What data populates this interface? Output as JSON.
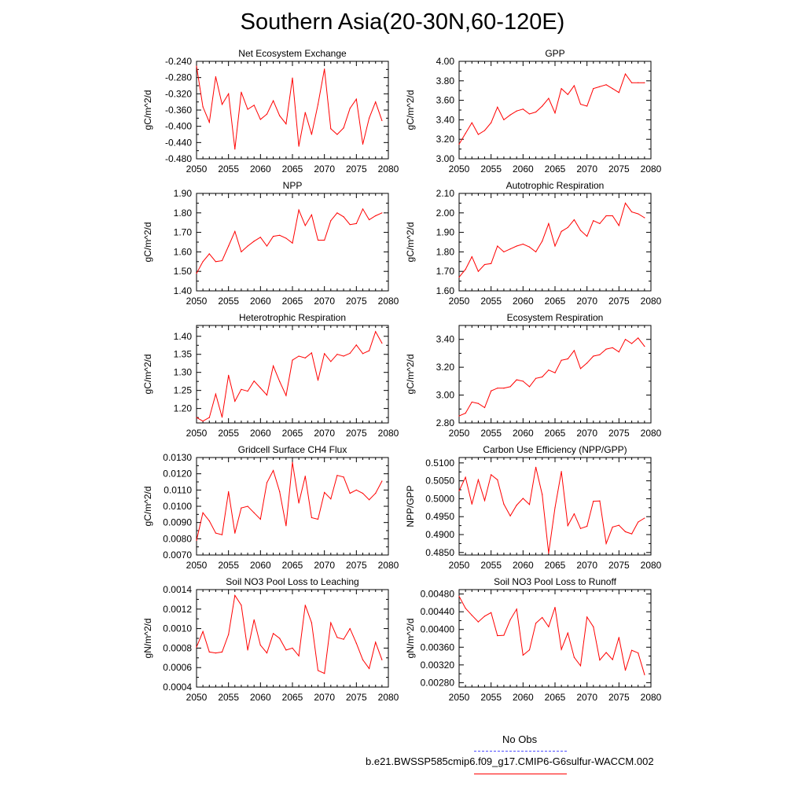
{
  "page": {
    "title": "Southern Asia(20-30N,60-120E)"
  },
  "legend": {
    "entries": [
      {
        "label": "No Obs",
        "color": "#4d4dff",
        "style": "dashed"
      },
      {
        "label": "b.e21.BWSSP585cmip6.f09_g17.CMIP6-G6sulfur-WACCM.002",
        "color": "#ff0000",
        "style": "solid"
      }
    ]
  },
  "chart_data": [
    {
      "type": "line",
      "title": "Net Ecosystem Exchange",
      "ylabel": "gC/m^2/d",
      "xlabel": "",
      "xlim": [
        2050,
        2080
      ],
      "xticks": [
        "2050",
        "2055",
        "2060",
        "2065",
        "2070",
        "2075",
        "2080"
      ],
      "ylim": [
        -0.48,
        -0.24
      ],
      "yticks": [
        "-0.240",
        "-0.280",
        "-0.320",
        "-0.360",
        "-0.400",
        "-0.440",
        "-0.480"
      ],
      "line_color": "#ff0000",
      "x": [
        2050,
        2051,
        2052,
        2053,
        2054,
        2055,
        2056,
        2057,
        2058,
        2059,
        2060,
        2061,
        2062,
        2063,
        2064,
        2065,
        2066,
        2067,
        2068,
        2069,
        2070,
        2071,
        2072,
        2073,
        2074,
        2075,
        2076,
        2077,
        2078,
        2079
      ],
      "values": [
        -0.252,
        -0.352,
        -0.39,
        -0.278,
        -0.346,
        -0.32,
        -0.456,
        -0.316,
        -0.358,
        -0.348,
        -0.383,
        -0.37,
        -0.337,
        -0.374,
        -0.394,
        -0.281,
        -0.449,
        -0.366,
        -0.42,
        -0.346,
        -0.259,
        -0.406,
        -0.42,
        -0.404,
        -0.356,
        -0.333,
        -0.444,
        -0.38,
        -0.34,
        -0.386
      ]
    },
    {
      "type": "line",
      "title": "GPP",
      "ylabel": "gC/m^2/d",
      "xlabel": "",
      "xlim": [
        2050,
        2080
      ],
      "xticks": [
        "2050",
        "2055",
        "2060",
        "2065",
        "2070",
        "2075",
        "2080"
      ],
      "ylim": [
        3.0,
        4.0
      ],
      "yticks": [
        "4.00",
        "3.80",
        "3.60",
        "3.40",
        "3.20",
        "3.00"
      ],
      "line_color": "#ff0000",
      "x": [
        2050,
        2051,
        2052,
        2053,
        2054,
        2055,
        2056,
        2057,
        2058,
        2059,
        2060,
        2061,
        2062,
        2063,
        2064,
        2065,
        2066,
        2067,
        2068,
        2069,
        2070,
        2071,
        2072,
        2073,
        2074,
        2075,
        2076,
        2077,
        2078,
        2079
      ],
      "values": [
        3.15,
        3.26,
        3.37,
        3.25,
        3.29,
        3.37,
        3.53,
        3.4,
        3.45,
        3.49,
        3.51,
        3.46,
        3.48,
        3.54,
        3.62,
        3.47,
        3.72,
        3.66,
        3.75,
        3.56,
        3.54,
        3.72,
        3.74,
        3.76,
        3.72,
        3.68,
        3.87,
        3.78,
        3.78,
        3.78
      ]
    },
    {
      "type": "line",
      "title": "NPP",
      "ylabel": "gC/m^2/d",
      "xlabel": "",
      "xlim": [
        2050,
        2080
      ],
      "xticks": [
        "2050",
        "2055",
        "2060",
        "2065",
        "2070",
        "2075",
        "2080"
      ],
      "ylim": [
        1.4,
        1.9
      ],
      "yticks": [
        "1.90",
        "1.80",
        "1.70",
        "1.60",
        "1.50",
        "1.40"
      ],
      "line_color": "#ff0000",
      "x": [
        2050,
        2051,
        2052,
        2053,
        2054,
        2055,
        2056,
        2057,
        2058,
        2059,
        2060,
        2061,
        2062,
        2063,
        2064,
        2065,
        2066,
        2067,
        2068,
        2069,
        2070,
        2071,
        2072,
        2073,
        2074,
        2075,
        2076,
        2077,
        2078,
        2079
      ],
      "values": [
        1.49,
        1.55,
        1.59,
        1.55,
        1.555,
        1.63,
        1.705,
        1.6,
        1.63,
        1.655,
        1.675,
        1.63,
        1.68,
        1.685,
        1.67,
        1.645,
        1.815,
        1.735,
        1.79,
        1.66,
        1.66,
        1.76,
        1.8,
        1.78,
        1.74,
        1.745,
        1.82,
        1.765,
        1.785,
        1.8
      ]
    },
    {
      "type": "line",
      "title": "Autotrophic Respiration",
      "ylabel": "gC/m^2/d",
      "xlabel": "",
      "xlim": [
        2050,
        2080
      ],
      "xticks": [
        "2050",
        "2055",
        "2060",
        "2065",
        "2070",
        "2075",
        "2080"
      ],
      "ylim": [
        1.6,
        2.1
      ],
      "yticks": [
        "2.10",
        "2.00",
        "1.90",
        "1.80",
        "1.70",
        "1.60"
      ],
      "line_color": "#ff0000",
      "x": [
        2050,
        2051,
        2052,
        2053,
        2054,
        2055,
        2056,
        2057,
        2058,
        2059,
        2060,
        2061,
        2062,
        2063,
        2064,
        2065,
        2066,
        2067,
        2068,
        2069,
        2070,
        2071,
        2072,
        2073,
        2074,
        2075,
        2076,
        2077,
        2078,
        2079
      ],
      "values": [
        1.67,
        1.71,
        1.775,
        1.7,
        1.735,
        1.74,
        1.83,
        1.8,
        1.815,
        1.83,
        1.84,
        1.825,
        1.8,
        1.855,
        1.945,
        1.83,
        1.905,
        1.925,
        1.965,
        1.91,
        1.88,
        1.96,
        1.945,
        1.985,
        1.985,
        1.935,
        2.05,
        2.005,
        1.995,
        1.975
      ]
    },
    {
      "type": "line",
      "title": "Heterotrophic Respiration",
      "ylabel": "gC/m^2/d",
      "xlabel": "",
      "xlim": [
        2050,
        2080
      ],
      "xticks": [
        "2050",
        "2055",
        "2060",
        "2065",
        "2070",
        "2075",
        "2080"
      ],
      "ylim": [
        1.16,
        1.43
      ],
      "yticks": [
        "1.40",
        "1.35",
        "1.30",
        "1.25",
        "1.20"
      ],
      "line_color": "#ff0000",
      "x": [
        2050,
        2051,
        2052,
        2053,
        2054,
        2055,
        2056,
        2057,
        2058,
        2059,
        2060,
        2061,
        2062,
        2063,
        2064,
        2065,
        2066,
        2067,
        2068,
        2069,
        2070,
        2071,
        2072,
        2073,
        2074,
        2075,
        2076,
        2077,
        2078,
        2079
      ],
      "values": [
        1.175,
        1.165,
        1.175,
        1.24,
        1.176,
        1.292,
        1.22,
        1.253,
        1.248,
        1.276,
        1.257,
        1.237,
        1.318,
        1.275,
        1.236,
        1.334,
        1.345,
        1.34,
        1.354,
        1.278,
        1.352,
        1.33,
        1.35,
        1.345,
        1.353,
        1.376,
        1.352,
        1.36,
        1.413,
        1.381
      ]
    },
    {
      "type": "line",
      "title": "Ecosystem Respiration",
      "ylabel": "gC/m^2/d",
      "xlabel": "",
      "xlim": [
        2050,
        2080
      ],
      "xticks": [
        "2050",
        "2055",
        "2060",
        "2065",
        "2070",
        "2075",
        "2080"
      ],
      "ylim": [
        2.8,
        3.5
      ],
      "yticks": [
        "3.40",
        "3.20",
        "3.00",
        "2.80"
      ],
      "line_color": "#ff0000",
      "x": [
        2050,
        2051,
        2052,
        2053,
        2054,
        2055,
        2056,
        2057,
        2058,
        2059,
        2060,
        2061,
        2062,
        2063,
        2064,
        2065,
        2066,
        2067,
        2068,
        2069,
        2070,
        2071,
        2072,
        2073,
        2074,
        2075,
        2076,
        2077,
        2078,
        2079
      ],
      "values": [
        2.85,
        2.87,
        2.95,
        2.94,
        2.91,
        3.03,
        3.05,
        3.05,
        3.06,
        3.11,
        3.1,
        3.06,
        3.12,
        3.13,
        3.18,
        3.16,
        3.25,
        3.26,
        3.32,
        3.19,
        3.23,
        3.28,
        3.29,
        3.33,
        3.34,
        3.31,
        3.4,
        3.37,
        3.41,
        3.35
      ]
    },
    {
      "type": "line",
      "title": "Gridcell Surface CH4 Flux",
      "ylabel": "gC/m^2/d",
      "xlabel": "",
      "xlim": [
        2050,
        2080
      ],
      "xticks": [
        "2050",
        "2055",
        "2060",
        "2065",
        "2070",
        "2075",
        "2080"
      ],
      "ylim": [
        0.007,
        0.013
      ],
      "yticks": [
        "0.0130",
        "0.0120",
        "0.0110",
        "0.0100",
        "0.0090",
        "0.0080",
        "0.0070"
      ],
      "line_color": "#ff0000",
      "x": [
        2050,
        2051,
        2052,
        2053,
        2054,
        2055,
        2056,
        2057,
        2058,
        2059,
        2060,
        2061,
        2062,
        2063,
        2064,
        2065,
        2066,
        2067,
        2068,
        2069,
        2070,
        2071,
        2072,
        2073,
        2074,
        2075,
        2076,
        2077,
        2078,
        2079
      ],
      "values": [
        0.0079,
        0.0096,
        0.0091,
        0.00835,
        0.00825,
        0.0109,
        0.00835,
        0.0099,
        0.01,
        0.0096,
        0.0092,
        0.01145,
        0.0122,
        0.0109,
        0.0088,
        0.0127,
        0.0102,
        0.01185,
        0.0093,
        0.0092,
        0.01085,
        0.01045,
        0.0119,
        0.0118,
        0.0108,
        0.011,
        0.0108,
        0.0104,
        0.0108,
        0.01155
      ]
    },
    {
      "type": "line",
      "title": "Carbon Use Efficiency (NPP/GPP)",
      "ylabel": "NPP/GPP",
      "xlabel": "",
      "xlim": [
        2050,
        2080
      ],
      "xticks": [
        "2050",
        "2055",
        "2060",
        "2065",
        "2070",
        "2075",
        "2080"
      ],
      "ylim": [
        0.4843,
        0.5115
      ],
      "yticks": [
        "0.5100",
        "0.5050",
        "0.5000",
        "0.4950",
        "0.4900",
        "0.4850"
      ],
      "line_color": "#ff0000",
      "x": [
        2050,
        2051,
        2052,
        2053,
        2054,
        2055,
        2056,
        2057,
        2058,
        2059,
        2060,
        2061,
        2062,
        2063,
        2064,
        2065,
        2066,
        2067,
        2068,
        2069,
        2070,
        2071,
        2072,
        2073,
        2074,
        2075,
        2076,
        2077,
        2078,
        2079
      ],
      "values": [
        0.5022,
        0.506,
        0.4985,
        0.5053,
        0.4995,
        0.5067,
        0.5053,
        0.4985,
        0.4952,
        0.4982,
        0.5001,
        0.4984,
        0.5088,
        0.5012,
        0.4848,
        0.4975,
        0.5076,
        0.4925,
        0.4958,
        0.4917,
        0.4923,
        0.4993,
        0.4994,
        0.4875,
        0.4921,
        0.4926,
        0.4908,
        0.4902,
        0.4935,
        0.4946
      ]
    },
    {
      "type": "line",
      "title": "Soil NO3 Pool Loss to Leaching",
      "ylabel": "gN/m^2/d",
      "xlabel": "",
      "xlim": [
        2050,
        2080
      ],
      "xticks": [
        "2050",
        "2055",
        "2060",
        "2065",
        "2070",
        "2075",
        "2080"
      ],
      "ylim": [
        0.0004,
        0.0014
      ],
      "yticks": [
        "0.0014",
        "0.0012",
        "0.0010",
        "0.0008",
        "0.0006",
        "0.0004"
      ],
      "line_color": "#ff0000",
      "x": [
        2050,
        2051,
        2052,
        2053,
        2054,
        2055,
        2056,
        2057,
        2058,
        2059,
        2060,
        2061,
        2062,
        2063,
        2064,
        2065,
        2066,
        2067,
        2068,
        2069,
        2070,
        2071,
        2072,
        2073,
        2074,
        2075,
        2076,
        2077,
        2078,
        2079
      ],
      "values": [
        0.00081,
        0.00097,
        0.00076,
        0.00075,
        0.00076,
        0.00094,
        0.00134,
        0.00124,
        0.00078,
        0.00109,
        0.00083,
        0.00075,
        0.00095,
        0.0009,
        0.00078,
        0.0008,
        0.00072,
        0.00124,
        0.00106,
        0.00057,
        0.00054,
        0.00106,
        0.00091,
        0.00089,
        0.001,
        0.00085,
        0.00068,
        0.00059,
        0.00086,
        0.00068
      ]
    },
    {
      "type": "line",
      "title": "Soil NO3 Pool Loss to Runoff",
      "ylabel": "gN/m^2/d",
      "xlabel": "",
      "xlim": [
        2050,
        2080
      ],
      "xticks": [
        "2050",
        "2055",
        "2060",
        "2065",
        "2070",
        "2075",
        "2080"
      ],
      "ylim": [
        0.0027,
        0.0049
      ],
      "yticks": [
        "0.00480",
        "0.00440",
        "0.00400",
        "0.00360",
        "0.00320",
        "0.00280"
      ],
      "line_color": "#ff0000",
      "x": [
        2050,
        2051,
        2052,
        2053,
        2054,
        2055,
        2056,
        2057,
        2058,
        2059,
        2060,
        2061,
        2062,
        2063,
        2064,
        2065,
        2066,
        2067,
        2068,
        2069,
        2070,
        2071,
        2072,
        2073,
        2074,
        2075,
        2076,
        2077,
        2078,
        2079
      ],
      "values": [
        0.00475,
        0.00448,
        0.00432,
        0.00417,
        0.0043,
        0.00438,
        0.00386,
        0.00387,
        0.00422,
        0.00446,
        0.00342,
        0.00354,
        0.00414,
        0.00427,
        0.00406,
        0.0045,
        0.00355,
        0.00392,
        0.00337,
        0.00318,
        0.00428,
        0.00406,
        0.00331,
        0.00348,
        0.00332,
        0.00382,
        0.00308,
        0.00353,
        0.00347,
        0.00298
      ]
    }
  ]
}
